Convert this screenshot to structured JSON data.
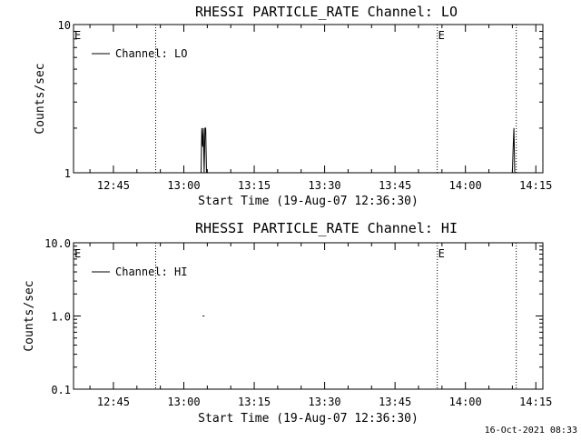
{
  "chart_data": [
    {
      "type": "line",
      "title": "RHESSI PARTICLE_RATE Channel: LO",
      "xlabel": "Start Time (19-Aug-07 12:36:30)",
      "ylabel": "Counts/sec",
      "yscale": "log",
      "ylim": [
        1,
        10
      ],
      "yticks": [
        "1",
        "10"
      ],
      "xlim_minutes": [
        "12:36:30",
        "14:16:30"
      ],
      "xticks": [
        "12:45",
        "13:00",
        "13:15",
        "13:30",
        "13:45",
        "14:00",
        "14:15"
      ],
      "legend": "Channel: LO",
      "eclipse_markers": [
        {
          "time": "12:54:00",
          "label": ""
        },
        {
          "time": "13:54:00",
          "label": "E"
        },
        {
          "time": "14:10:50",
          "label": ""
        }
      ],
      "start_label": "E",
      "series": [
        {
          "name": "Channel: LO",
          "points": [
            [
              "13:03:40",
              1
            ],
            [
              "13:03:50",
              2
            ],
            [
              "13:04:00",
              1.5
            ],
            [
              "13:04:10",
              2
            ],
            [
              "13:04:20",
              1
            ],
            [
              "13:04:30",
              2
            ],
            [
              "13:04:40",
              2
            ],
            [
              "13:04:50",
              1
            ],
            [
              "14:10:00",
              1
            ],
            [
              "14:10:10",
              1.5
            ],
            [
              "14:10:20",
              2
            ],
            [
              "14:10:30",
              1
            ]
          ]
        }
      ]
    },
    {
      "type": "line",
      "title": "RHESSI PARTICLE_RATE Channel: HI",
      "xlabel": "Start Time (19-Aug-07 12:36:30)",
      "ylabel": "Counts/sec",
      "yscale": "log",
      "ylim": [
        0.1,
        10
      ],
      "yticks": [
        "0.1",
        "1.0",
        "10.0"
      ],
      "xlim_minutes": [
        "12:36:30",
        "14:16:30"
      ],
      "xticks": [
        "12:45",
        "13:00",
        "13:15",
        "13:30",
        "13:45",
        "14:00",
        "14:15"
      ],
      "legend": "Channel: HI",
      "eclipse_markers": [
        {
          "time": "12:54:00",
          "label": ""
        },
        {
          "time": "13:54:00",
          "label": "E"
        },
        {
          "time": "14:10:50",
          "label": ""
        }
      ],
      "start_label": "E",
      "series": [
        {
          "name": "Channel: HI",
          "points": [
            [
              "13:04:00",
              1
            ],
            [
              "13:04:30",
              1
            ]
          ]
        }
      ]
    }
  ],
  "footer": {
    "timestamp": "16-Oct-2021 08:33"
  }
}
